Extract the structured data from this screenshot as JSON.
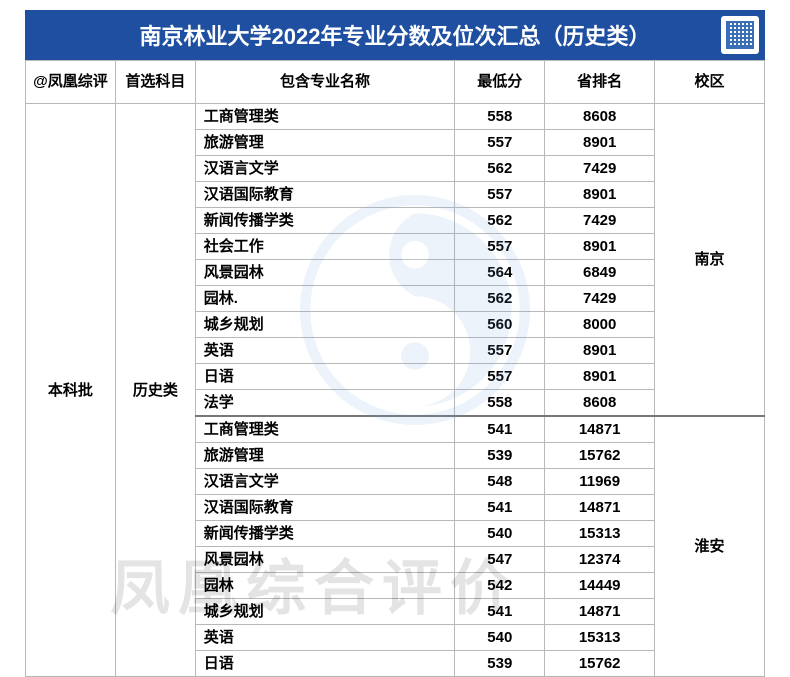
{
  "title": "南京林业大学2022年专业分数及位次汇总（历史类）",
  "columns": {
    "c0": "@凤凰综评",
    "c1": "首选科目",
    "c2": "包含专业名称",
    "c3": "最低分",
    "c4": "省排名",
    "c5": "校区"
  },
  "merged": {
    "batch": "本科批",
    "subject": "历史类",
    "campus1": "南京",
    "campus2": "淮安"
  },
  "rows": [
    {
      "major": "工商管理类",
      "score": "558",
      "rank": "8608"
    },
    {
      "major": "旅游管理",
      "score": "557",
      "rank": "8901"
    },
    {
      "major": "汉语言文学",
      "score": "562",
      "rank": "7429"
    },
    {
      "major": "汉语国际教育",
      "score": "557",
      "rank": "8901"
    },
    {
      "major": "新闻传播学类",
      "score": "562",
      "rank": "7429"
    },
    {
      "major": "社会工作",
      "score": "557",
      "rank": "8901"
    },
    {
      "major": "风景园林",
      "score": "564",
      "rank": "6849"
    },
    {
      "major": "园林.",
      "score": "562",
      "rank": "7429"
    },
    {
      "major": "城乡规划",
      "score": "560",
      "rank": "8000"
    },
    {
      "major": "英语",
      "score": "557",
      "rank": "8901"
    },
    {
      "major": "日语",
      "score": "557",
      "rank": "8901"
    },
    {
      "major": "法学",
      "score": "558",
      "rank": "8608"
    },
    {
      "major": "工商管理类",
      "score": "541",
      "rank": "14871"
    },
    {
      "major": "旅游管理",
      "score": "539",
      "rank": "15762"
    },
    {
      "major": "汉语言文学",
      "score": "548",
      "rank": "11969"
    },
    {
      "major": "汉语国际教育",
      "score": "541",
      "rank": "14871"
    },
    {
      "major": "新闻传播学类",
      "score": "540",
      "rank": "15313"
    },
    {
      "major": "风景园林",
      "score": "547",
      "rank": "12374"
    },
    {
      "major": "园林",
      "score": "542",
      "rank": "14449"
    },
    {
      "major": "城乡规划",
      "score": "541",
      "rank": "14871"
    },
    {
      "major": "英语",
      "score": "540",
      "rank": "15313"
    },
    {
      "major": "日语",
      "score": "539",
      "rank": "15762"
    }
  ],
  "watermark_text": "凤凰综合评价",
  "colors": {
    "header_bg": "#1f4fa1",
    "border": "#b8b8b8",
    "wm_logo": "#6da4d9"
  }
}
